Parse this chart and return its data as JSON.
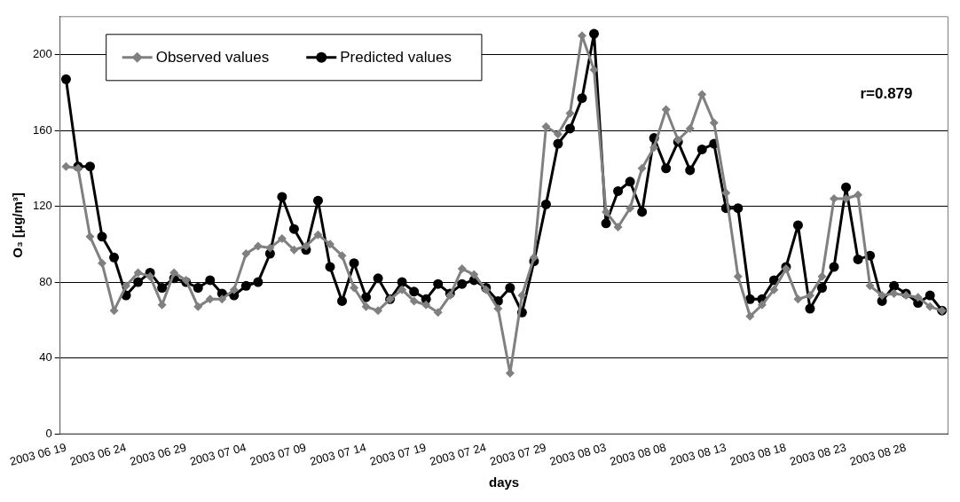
{
  "chart_data": {
    "type": "line",
    "xlabel": "days",
    "ylabel": "O₃ [μg/m³]",
    "categories": [
      "2003 06 19",
      null,
      null,
      null,
      null,
      "2003 06 24",
      null,
      null,
      null,
      null,
      "2003 06 29",
      null,
      null,
      null,
      null,
      "2003 07 04",
      null,
      null,
      null,
      null,
      "2003 07 09",
      null,
      null,
      null,
      null,
      "2003 07 14",
      null,
      null,
      null,
      null,
      "2003 07 19",
      null,
      null,
      null,
      null,
      "2003 07 24",
      null,
      null,
      null,
      null,
      "2003 07 29",
      null,
      null,
      null,
      null,
      "2003 08 03",
      null,
      null,
      null,
      null,
      "2003 08 08",
      null,
      null,
      null,
      null,
      "2003 08 13",
      null,
      null,
      null,
      null,
      "2003 08 18",
      null,
      null,
      null,
      null,
      "2003 08 23",
      null,
      null,
      null,
      null,
      "2003 08 28",
      null,
      null,
      null
    ],
    "series": [
      {
        "name": "Observed values",
        "color": "#808080",
        "marker": "diamond",
        "values": [
          141,
          140,
          104,
          90,
          65,
          78,
          85,
          83,
          68,
          85,
          81,
          67,
          71,
          71,
          76,
          95,
          99,
          98,
          103,
          97,
          99,
          105,
          100,
          94,
          77,
          67,
          65,
          71,
          76,
          70,
          68,
          64,
          73,
          87,
          84,
          76,
          66,
          32,
          73,
          93,
          162,
          158,
          169,
          210,
          192,
          117,
          109,
          119,
          140,
          151,
          171,
          155,
          161,
          179,
          164,
          127,
          83,
          62,
          68,
          76,
          87,
          71,
          73,
          83,
          124,
          124,
          126,
          78,
          73,
          74,
          73,
          72,
          67,
          65
        ]
      },
      {
        "name": "Predicted values",
        "color": "#000000",
        "marker": "circle",
        "values": [
          187,
          141,
          141,
          104,
          93,
          73,
          80,
          85,
          77,
          82,
          80,
          77,
          81,
          74,
          73,
          78,
          80,
          95,
          125,
          108,
          97,
          123,
          88,
          70,
          90,
          72,
          82,
          71,
          80,
          75,
          71,
          79,
          74,
          79,
          81,
          77,
          70,
          77,
          64,
          91,
          121,
          153,
          161,
          177,
          211,
          111,
          128,
          133,
          117,
          156,
          140,
          154,
          139,
          150,
          153,
          119,
          119,
          71,
          71,
          81,
          88,
          110,
          66,
          77,
          88,
          130,
          92,
          94,
          70,
          78,
          74,
          69,
          73,
          65
        ]
      }
    ],
    "ylim": [
      0,
      220
    ],
    "yticks": [
      0,
      40,
      80,
      120,
      160,
      200
    ],
    "grid": "y",
    "legend": "top left",
    "line_style": "solid",
    "annotations": [
      "r=0.879"
    ]
  }
}
